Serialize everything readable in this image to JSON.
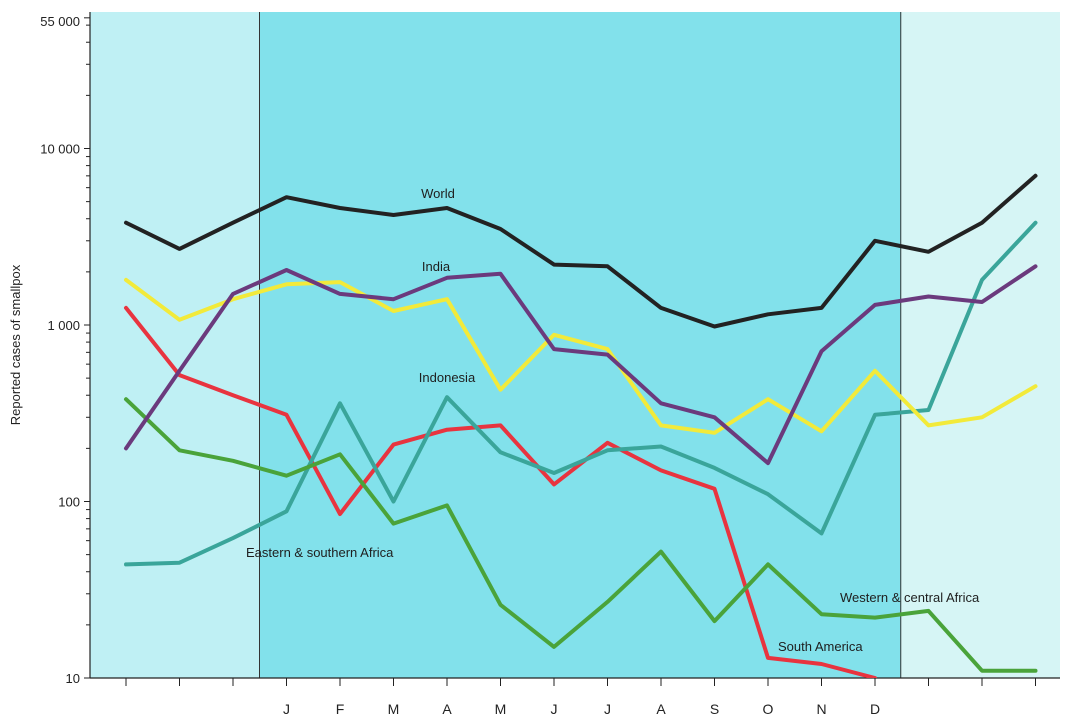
{
  "chart_data": {
    "type": "line",
    "title": "",
    "ylabel": "Reported cases of smallpox",
    "xlabel": "",
    "yscale": "log",
    "ylim": [
      10,
      55000
    ],
    "y_tick_labels": [
      "10",
      "100",
      "1 000",
      "10 000",
      "55 000"
    ],
    "y_ticks": [
      10,
      100,
      1000,
      10000,
      55000
    ],
    "x_positions": 18,
    "month_labels": [
      {
        "index": 3,
        "label": "J"
      },
      {
        "index": 4,
        "label": "F"
      },
      {
        "index": 5,
        "label": "M"
      },
      {
        "index": 6,
        "label": "A"
      },
      {
        "index": 7,
        "label": "M"
      },
      {
        "index": 8,
        "label": "J"
      },
      {
        "index": 9,
        "label": "J"
      },
      {
        "index": 10,
        "label": "A"
      },
      {
        "index": 11,
        "label": "S"
      },
      {
        "index": 12,
        "label": "O"
      },
      {
        "index": 13,
        "label": "N"
      },
      {
        "index": 14,
        "label": "D"
      }
    ],
    "series": [
      {
        "name": "World",
        "color": "#222222",
        "values": [
          3800,
          2700,
          3800,
          5300,
          4600,
          4200,
          4600,
          3500,
          2200,
          2150,
          1250,
          980,
          1150,
          1250,
          3000,
          2600,
          3800,
          7000
        ]
      },
      {
        "name": "India",
        "color": "#6b3a7d",
        "values": [
          200,
          550,
          1500,
          2050,
          1500,
          1400,
          1850,
          1950,
          730,
          680,
          360,
          300,
          165,
          710,
          1300,
          1450,
          1350,
          2150
        ]
      },
      {
        "name": "Indonesia",
        "color": "#f2ea3a",
        "values": [
          1800,
          1070,
          1400,
          1700,
          1750,
          1200,
          1400,
          430,
          880,
          730,
          270,
          245,
          380,
          250,
          550,
          270,
          300,
          450
        ]
      },
      {
        "name": "Eastern & southern Africa",
        "color": "#3aa59a",
        "values": [
          44,
          45,
          62,
          88,
          360,
          100,
          390,
          190,
          145,
          195,
          205,
          155,
          110,
          66,
          310,
          330,
          1800,
          3800
        ]
      },
      {
        "name": "South America",
        "color": "#e8343f",
        "values": [
          1250,
          520,
          400,
          310,
          85,
          210,
          255,
          270,
          125,
          215,
          150,
          118,
          13,
          12,
          10
        ]
      },
      {
        "name": "Western & central Africa",
        "color": "#4aa33a",
        "values": [
          380,
          195,
          170,
          140,
          185,
          75,
          95,
          26,
          15,
          27,
          52,
          21,
          44,
          23,
          22,
          24,
          11,
          11
        ]
      }
    ],
    "annotations": [
      "World",
      "India",
      "Indonesia",
      "Eastern & southern Africa",
      "South America",
      "Western & central Africa"
    ],
    "shaded_band": {
      "from_index": 3,
      "to_index": 14.5
    },
    "colors": {
      "panel_light": "#bff0f4",
      "panel_dark": "#82e1eb",
      "right_panel": "#d6f5f5"
    }
  }
}
